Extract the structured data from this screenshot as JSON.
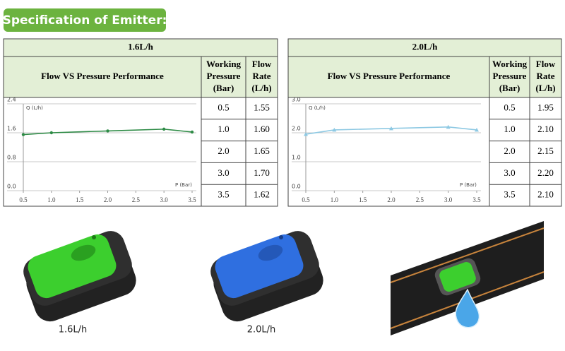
{
  "header": {
    "title": "Specification of Emitter:"
  },
  "tables": [
    {
      "title": "1.6L/h",
      "chart_title": "Flow VS Pressure Performance",
      "columns": [
        [
          "Working",
          "Pressure",
          "(Bar)"
        ],
        [
          "Flow",
          "Rate",
          "(L/h)"
        ]
      ],
      "rows": [
        [
          "0.5",
          "1.55"
        ],
        [
          "1.0",
          "1.60"
        ],
        [
          "2.0",
          "1.65"
        ],
        [
          "3.0",
          "1.70"
        ],
        [
          "3.5",
          "1.62"
        ]
      ],
      "chart": {
        "type": "line",
        "y_label": "Q (L/h)",
        "x_label": "P (Bar)",
        "x": [
          0.5,
          1,
          2,
          3,
          3.5
        ],
        "series": [
          {
            "color": "#2e8b46",
            "marker": "circle",
            "values": [
              1.55,
              1.6,
              1.65,
              1.7,
              1.62
            ]
          }
        ],
        "xlim": [
          0.5,
          3.5
        ],
        "ylim": [
          0,
          2.4
        ],
        "xticks": [
          0.5,
          {
            "value": 1,
            "label": "1.0"
          },
          1.5,
          {
            "value": 2,
            "label": "2.0"
          },
          2.5,
          {
            "value": 3,
            "label": "3.0"
          },
          3.5
        ],
        "yticks": [
          {
            "value": 0,
            "label": "0.0"
          },
          0.8,
          1.6,
          2.4
        ],
        "grid": true
      }
    },
    {
      "title": "2.0L/h",
      "chart_title": "Flow VS Pressure Performance",
      "columns": [
        [
          "Working",
          "Pressure",
          "(Bar)"
        ],
        [
          "Flow",
          "Rate",
          "(L/h)"
        ]
      ],
      "rows": [
        [
          "0.5",
          "1.95"
        ],
        [
          "1.0",
          "2.10"
        ],
        [
          "2.0",
          "2.15"
        ],
        [
          "3.0",
          "2.20"
        ],
        [
          "3.5",
          "2.10"
        ]
      ],
      "chart": {
        "type": "line",
        "y_label": "Q (L/h)",
        "x_label": "P (Bar)",
        "x": [
          0.5,
          1,
          2,
          3,
          3.5
        ],
        "series": [
          {
            "color": "#8ec9e3",
            "marker": "triangle",
            "values": [
              1.95,
              2.1,
              2.15,
              2.2,
              2.1
            ]
          }
        ],
        "xlim": [
          0.5,
          3.5
        ],
        "ylim": [
          0,
          3
        ],
        "xticks": [
          0.5,
          {
            "value": 1,
            "label": "1.0"
          },
          1.5,
          {
            "value": 2,
            "label": "2.0"
          },
          2.5,
          {
            "value": 3,
            "label": "3.0"
          },
          3.5
        ],
        "yticks": [
          {
            "value": 0,
            "label": "0.0"
          },
          {
            "value": 1,
            "label": "1.0"
          },
          {
            "value": 2,
            "label": "2.0"
          },
          {
            "value": 3,
            "label": "3.0"
          }
        ],
        "grid": true
      }
    }
  ],
  "captions": [
    "1.6L/h",
    "2.0L/h"
  ]
}
